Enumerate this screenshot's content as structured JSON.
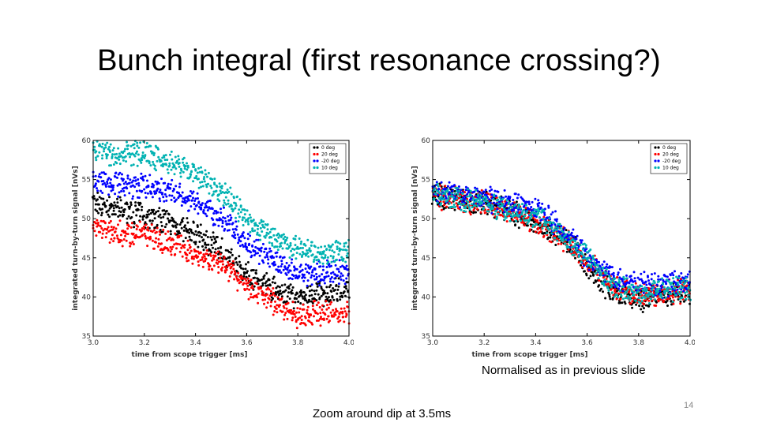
{
  "slide": {
    "title": "Bunch integral (first resonance crossing?)",
    "caption_right": "Normalised as in previous slide",
    "caption_left": "Zoom around dip at 3.5ms",
    "page_number": "14"
  },
  "chart_data": [
    {
      "id": "left",
      "type": "scatter",
      "title": "",
      "xlabel": "time from scope trigger [ms]",
      "ylabel": "integrated turn-by-turn signal [nVs]",
      "xlim": [
        3.0,
        4.0
      ],
      "ylim": [
        35,
        60
      ],
      "x_ticks": [
        "3.0",
        "3.2",
        "3.4",
        "3.6",
        "3.8",
        "4.0"
      ],
      "y_ticks": [
        "35",
        "40",
        "45",
        "50",
        "55",
        "60"
      ],
      "legend_position": "top-right",
      "series": [
        {
          "name": "0 deg",
          "color": "#000000",
          "x": [
            3.0,
            3.1,
            3.2,
            3.3,
            3.4,
            3.5,
            3.55,
            3.6,
            3.7,
            3.8,
            3.9,
            4.0
          ],
          "values": [
            52,
            51,
            50.5,
            49.5,
            48,
            46,
            44.5,
            43,
            41,
            40,
            40.5,
            41
          ]
        },
        {
          "name": "20 deg",
          "color": "#ff0000",
          "x": [
            3.0,
            3.1,
            3.2,
            3.3,
            3.4,
            3.5,
            3.55,
            3.6,
            3.7,
            3.8,
            3.9,
            4.0
          ],
          "values": [
            49,
            48,
            48,
            47,
            45.5,
            44,
            43,
            41.5,
            39.5,
            37.5,
            38,
            38
          ]
        },
        {
          "name": "-20 deg",
          "color": "#0000ff",
          "x": [
            3.0,
            3.1,
            3.2,
            3.3,
            3.4,
            3.5,
            3.55,
            3.6,
            3.7,
            3.8,
            3.9,
            4.0
          ],
          "values": [
            55,
            54.5,
            54,
            53.5,
            52,
            50,
            48.5,
            47,
            44.5,
            43,
            43,
            43.5
          ]
        },
        {
          "name": "10 deg",
          "color": "#00b2b2",
          "x": [
            3.0,
            3.1,
            3.2,
            3.3,
            3.4,
            3.5,
            3.55,
            3.6,
            3.7,
            3.8,
            3.9,
            4.0
          ],
          "values": [
            59,
            58,
            58.5,
            57,
            55.5,
            53.5,
            52,
            50,
            47.5,
            46,
            45.5,
            46
          ]
        }
      ]
    },
    {
      "id": "right",
      "type": "scatter",
      "title": "",
      "xlabel": "time from scope trigger [ms]",
      "ylabel": "integrated turn-by-turn signal [nVs]",
      "xlim": [
        3.0,
        4.0
      ],
      "ylim": [
        35,
        60
      ],
      "x_ticks": [
        "3.0",
        "3.2",
        "3.4",
        "3.6",
        "3.8",
        "4.0"
      ],
      "y_ticks": [
        "35",
        "40",
        "45",
        "50",
        "55",
        "60"
      ],
      "legend_position": "top-right",
      "series": [
        {
          "name": "0 deg",
          "color": "#000000",
          "x": [
            3.0,
            3.1,
            3.2,
            3.3,
            3.4,
            3.5,
            3.55,
            3.6,
            3.7,
            3.8,
            3.9,
            4.0
          ],
          "values": [
            53,
            52.5,
            52,
            51,
            49.5,
            47.5,
            46.5,
            44,
            40.5,
            39.5,
            40,
            40.5
          ]
        },
        {
          "name": "20 deg",
          "color": "#ff0000",
          "x": [
            3.0,
            3.1,
            3.2,
            3.3,
            3.4,
            3.5,
            3.55,
            3.6,
            3.7,
            3.8,
            3.9,
            4.0
          ],
          "values": [
            53,
            52.5,
            52,
            51,
            49.5,
            47.5,
            46.5,
            44.5,
            41.5,
            40,
            40.5,
            41
          ]
        },
        {
          "name": "-20 deg",
          "color": "#0000ff",
          "x": [
            3.0,
            3.1,
            3.2,
            3.3,
            3.4,
            3.5,
            3.55,
            3.6,
            3.7,
            3.8,
            3.9,
            4.0
          ],
          "values": [
            53.5,
            53,
            52.5,
            52,
            51.5,
            48.5,
            47,
            45,
            42.5,
            41.5,
            41.5,
            42
          ]
        },
        {
          "name": "10 deg",
          "color": "#00b2b2",
          "x": [
            3.0,
            3.1,
            3.2,
            3.3,
            3.4,
            3.5,
            3.55,
            3.6,
            3.7,
            3.8,
            3.9,
            4.0
          ],
          "values": [
            53,
            52.5,
            52,
            51,
            50,
            48,
            46.5,
            45,
            41.5,
            40.5,
            41,
            41
          ]
        }
      ]
    }
  ]
}
